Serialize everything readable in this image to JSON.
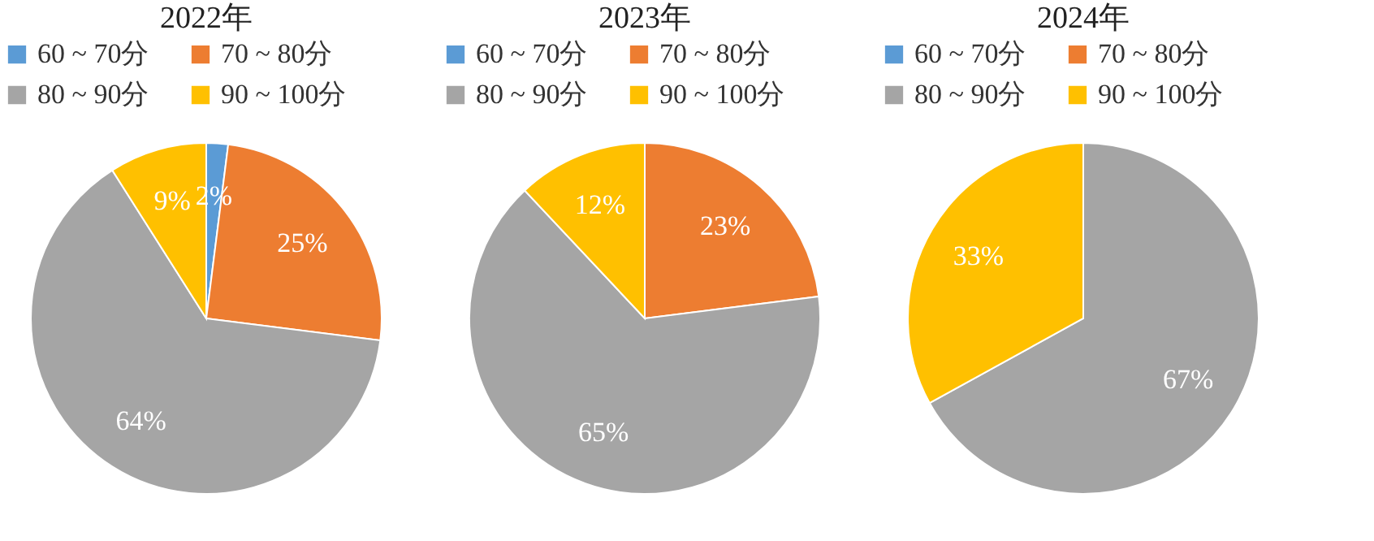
{
  "chart_data": [
    {
      "type": "pie",
      "title": "2022年",
      "categories": [
        "60 ~ 70分",
        "70 ~ 80分",
        "80 ~ 90分",
        "90 ~ 100分"
      ],
      "values": [
        2,
        25,
        64,
        9
      ],
      "colors": [
        "#5b9bd5",
        "#ed7d31",
        "#a5a5a5",
        "#ffc000"
      ],
      "value_labels": [
        "2%",
        "25%",
        "64%",
        "9%"
      ],
      "legend": "top"
    },
    {
      "type": "pie",
      "title": "2023年",
      "categories": [
        "60 ~ 70分",
        "70 ~ 80分",
        "80 ~ 90分",
        "90 ~ 100分"
      ],
      "values": [
        0,
        23,
        65,
        12
      ],
      "colors": [
        "#5b9bd5",
        "#ed7d31",
        "#a5a5a5",
        "#ffc000"
      ],
      "value_labels": [
        null,
        "23%",
        "65%",
        "12%"
      ],
      "legend": "top"
    },
    {
      "type": "pie",
      "title": "2024年",
      "categories": [
        "60 ~ 70分",
        "70 ~ 80分",
        "80 ~ 90分",
        "90 ~ 100分"
      ],
      "values": [
        0,
        0,
        67,
        33
      ],
      "colors": [
        "#5b9bd5",
        "#ed7d31",
        "#a5a5a5",
        "#ffc000"
      ],
      "value_labels": [
        null,
        null,
        "67%",
        "33%"
      ],
      "legend": "top"
    }
  ]
}
